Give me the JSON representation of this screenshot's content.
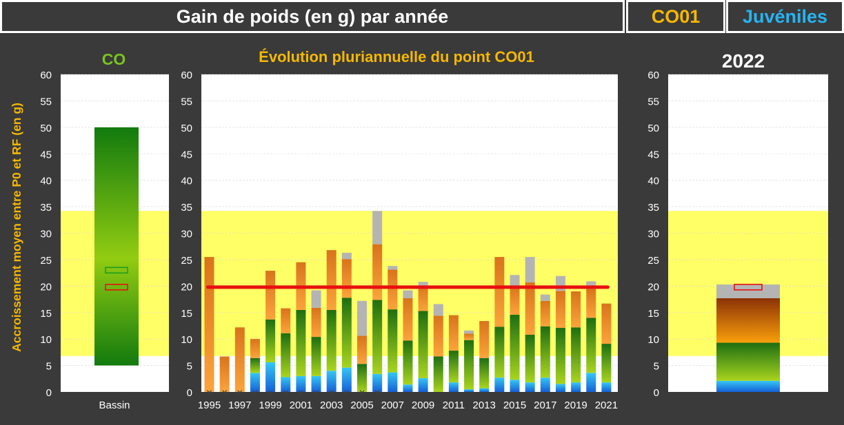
{
  "header": {
    "title": "Gain de poids (en g) par année",
    "code": "CO01",
    "stage": "Juvéniles"
  },
  "y_axis_label": "Accroissement  moyen entre P0 et RF (en g)",
  "colors": {
    "code": "#f5b800",
    "stage": "#27b4f0",
    "co": "#7ac51f",
    "title": "#f5b800",
    "band": "#ffff66",
    "line": "#e81010",
    "gray": "#b4b4b4"
  },
  "chart_data": [
    {
      "type": "bar",
      "title": "CO",
      "categories": [
        "Bassin"
      ],
      "ylim": [
        0,
        60
      ],
      "yticks": [
        0,
        5,
        10,
        15,
        20,
        25,
        30,
        35,
        40,
        45,
        50,
        55,
        60
      ],
      "range_bar": {
        "low": 5,
        "high": 50
      },
      "markers": [
        {
          "name": "green",
          "value": 23
        },
        {
          "name": "red",
          "value": 19.8
        }
      ],
      "reference_band": [
        6.8,
        34.2
      ]
    },
    {
      "type": "stacked-bar",
      "title": "Évolution pluriannuelle du point CO01",
      "ylim": [
        0,
        60
      ],
      "yticks": [
        0,
        5,
        10,
        15,
        20,
        25,
        30,
        35,
        40,
        45,
        50,
        55,
        60
      ],
      "x_labels": [
        "1995",
        "1997",
        "1999",
        "2001",
        "2003",
        "2005",
        "2007",
        "2009",
        "2011",
        "2013",
        "2015",
        "2017",
        "2019",
        "2021"
      ],
      "reference_band": [
        6.8,
        34.2
      ],
      "reference_line": 19.8,
      "series_names": [
        "bleu",
        "vert",
        "orange",
        "gris"
      ],
      "years": [
        {
          "year": 1995,
          "blue": 0,
          "green": 0,
          "orange": 25.5,
          "gray": 0,
          "cross": true
        },
        {
          "year": 1996,
          "blue": 0,
          "green": 0,
          "orange": 6.7,
          "gray": 0,
          "cross": true
        },
        {
          "year": 1997,
          "blue": 0,
          "green": 0,
          "orange": 12.2,
          "gray": 0,
          "cross": true
        },
        {
          "year": 1998,
          "blue": 3.6,
          "green": 2.8,
          "orange": 3.6,
          "gray": 0,
          "cross": true
        },
        {
          "year": 1999,
          "blue": 5.6,
          "green": 8.1,
          "orange": 9.2,
          "gray": 0,
          "cross": true
        },
        {
          "year": 2000,
          "blue": 2.8,
          "green": 8.3,
          "orange": 4.7,
          "gray": 0,
          "cross": true
        },
        {
          "year": 2001,
          "blue": 3.0,
          "green": 12.5,
          "orange": 9.0,
          "gray": 0,
          "cross": true
        },
        {
          "year": 2002,
          "blue": 3.0,
          "green": 7.4,
          "orange": 5.5,
          "gray": 3.3,
          "cross": true
        },
        {
          "year": 2003,
          "blue": 4.0,
          "green": 11.5,
          "orange": 11.3,
          "gray": 0,
          "cross": true
        },
        {
          "year": 2004,
          "blue": 4.6,
          "green": 13.2,
          "orange": 7.3,
          "gray": 1.2,
          "cross": true
        },
        {
          "year": 2005,
          "blue": 0,
          "green": 5.3,
          "orange": 5.3,
          "gray": 6.6,
          "cross": true
        },
        {
          "year": 2006,
          "blue": 3.4,
          "green": 14.0,
          "orange": 10.5,
          "gray": 6.3,
          "cross": true
        },
        {
          "year": 2007,
          "blue": 3.7,
          "green": 11.9,
          "orange": 7.5,
          "gray": 0.7,
          "cross": false
        },
        {
          "year": 2008,
          "blue": 1.4,
          "green": 8.3,
          "orange": 8.0,
          "gray": 1.5,
          "cross": false
        },
        {
          "year": 2009,
          "blue": 2.6,
          "green": 12.7,
          "orange": 4.7,
          "gray": 0.8,
          "cross": false
        },
        {
          "year": 2010,
          "blue": 0,
          "green": 6.7,
          "orange": 7.7,
          "gray": 2.2,
          "cross": false
        },
        {
          "year": 2011,
          "blue": 1.8,
          "green": 6.0,
          "orange": 6.7,
          "gray": 0,
          "cross": false
        },
        {
          "year": 2012,
          "blue": 0.5,
          "green": 9.3,
          "orange": 1.2,
          "gray": 0.6,
          "cross": false
        },
        {
          "year": 2013,
          "blue": 0.7,
          "green": 5.7,
          "orange": 7.0,
          "gray": 0,
          "cross": false
        },
        {
          "year": 2014,
          "blue": 2.7,
          "green": 9.6,
          "orange": 13.2,
          "gray": 0,
          "cross": false
        },
        {
          "year": 2015,
          "blue": 2.3,
          "green": 12.3,
          "orange": 5.5,
          "gray": 2.0,
          "cross": false
        },
        {
          "year": 2016,
          "blue": 1.8,
          "green": 9.0,
          "orange": 9.9,
          "gray": 4.8,
          "cross": false
        },
        {
          "year": 2017,
          "blue": 2.7,
          "green": 9.7,
          "orange": 4.8,
          "gray": 1.2,
          "cross": false
        },
        {
          "year": 2018,
          "blue": 1.5,
          "green": 10.6,
          "orange": 7.0,
          "gray": 2.8,
          "cross": false
        },
        {
          "year": 2019,
          "blue": 1.8,
          "green": 10.4,
          "orange": 6.8,
          "gray": 0,
          "cross": false
        },
        {
          "year": 2020,
          "blue": 3.6,
          "green": 10.4,
          "orange": 5.5,
          "gray": 1.4,
          "cross": false
        },
        {
          "year": 2021,
          "blue": 1.8,
          "green": 7.3,
          "orange": 7.6,
          "gray": 0,
          "cross": false
        }
      ]
    },
    {
      "type": "stacked-bar",
      "title": "2022",
      "ylim": [
        0,
        60
      ],
      "yticks": [
        0,
        5,
        10,
        15,
        20,
        25,
        30,
        35,
        40,
        45,
        50,
        55,
        60
      ],
      "reference_band": [
        6.8,
        34.2
      ],
      "segments": {
        "blue": 2.1,
        "green": 7.2,
        "orange": 8.4,
        "gray": 2.6
      },
      "marker": 19.8
    }
  ]
}
